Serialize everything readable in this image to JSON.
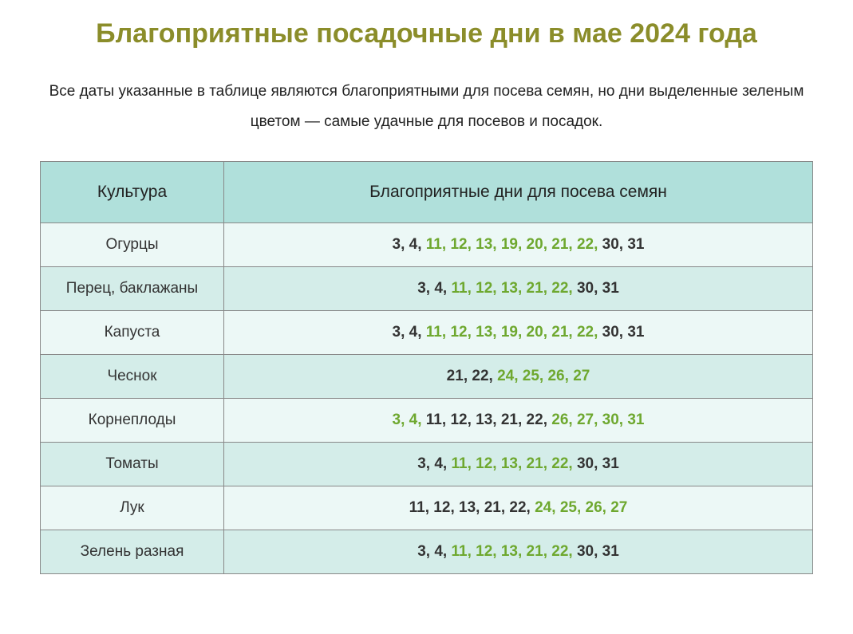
{
  "title": "Благоприятные посадочные дни в мае 2024 года",
  "subtitle": "Все даты указанные в таблице являются благоприятными для посева семян, но дни выделенные зеленым цветом — самые удачные для посевов и посадок.",
  "table": {
    "headers": {
      "col1": "Культура",
      "col2": "Благоприятные дни для посева семян"
    },
    "rows": [
      {
        "culture": "Огурцы",
        "dates": [
          {
            "v": "3",
            "h": false
          },
          {
            "v": "4",
            "h": false
          },
          {
            "v": "11",
            "h": true
          },
          {
            "v": "12",
            "h": true
          },
          {
            "v": "13",
            "h": true
          },
          {
            "v": "19",
            "h": true
          },
          {
            "v": "20",
            "h": true
          },
          {
            "v": "21",
            "h": true
          },
          {
            "v": "22",
            "h": true
          },
          {
            "v": "30",
            "h": false
          },
          {
            "v": "31",
            "h": false
          }
        ]
      },
      {
        "culture": "Перец, баклажаны",
        "dates": [
          {
            "v": "3",
            "h": false
          },
          {
            "v": "4",
            "h": false
          },
          {
            "v": "11",
            "h": true
          },
          {
            "v": "12",
            "h": true
          },
          {
            "v": "13",
            "h": true
          },
          {
            "v": "21",
            "h": true
          },
          {
            "v": "22",
            "h": true
          },
          {
            "v": "30",
            "h": false
          },
          {
            "v": "31",
            "h": false
          }
        ]
      },
      {
        "culture": "Капуста",
        "dates": [
          {
            "v": "3",
            "h": false
          },
          {
            "v": "4",
            "h": false
          },
          {
            "v": "11",
            "h": true
          },
          {
            "v": "12",
            "h": true
          },
          {
            "v": "13",
            "h": true
          },
          {
            "v": "19",
            "h": true
          },
          {
            "v": "20",
            "h": true
          },
          {
            "v": "21",
            "h": true
          },
          {
            "v": "22",
            "h": true
          },
          {
            "v": "30",
            "h": false
          },
          {
            "v": "31",
            "h": false
          }
        ]
      },
      {
        "culture": "Чеснок",
        "dates": [
          {
            "v": "21",
            "h": false
          },
          {
            "v": "22",
            "h": false
          },
          {
            "v": "24",
            "h": true
          },
          {
            "v": "25",
            "h": true
          },
          {
            "v": "26",
            "h": true
          },
          {
            "v": "27",
            "h": true
          }
        ]
      },
      {
        "culture": "Корнеплоды",
        "dates": [
          {
            "v": "3",
            "h": true
          },
          {
            "v": "4",
            "h": true
          },
          {
            "v": "11",
            "h": false
          },
          {
            "v": "12",
            "h": false
          },
          {
            "v": "13",
            "h": false
          },
          {
            "v": "21",
            "h": false
          },
          {
            "v": "22",
            "h": false
          },
          {
            "v": "26",
            "h": true
          },
          {
            "v": "27",
            "h": true
          },
          {
            "v": "30",
            "h": true
          },
          {
            "v": "31",
            "h": true
          }
        ]
      },
      {
        "culture": "Томаты",
        "dates": [
          {
            "v": "3",
            "h": false
          },
          {
            "v": "4",
            "h": false
          },
          {
            "v": "11",
            "h": true
          },
          {
            "v": "12",
            "h": true
          },
          {
            "v": "13",
            "h": true
          },
          {
            "v": "21",
            "h": true
          },
          {
            "v": "22",
            "h": true
          },
          {
            "v": "30",
            "h": false
          },
          {
            "v": "31",
            "h": false
          }
        ]
      },
      {
        "culture": "Лук",
        "dates": [
          {
            "v": "11",
            "h": false
          },
          {
            "v": "12",
            "h": false
          },
          {
            "v": "13",
            "h": false
          },
          {
            "v": "21",
            "h": false
          },
          {
            "v": "22",
            "h": false
          },
          {
            "v": "24",
            "h": true
          },
          {
            "v": "25",
            "h": true
          },
          {
            "v": "26",
            "h": true
          },
          {
            "v": "27",
            "h": true
          }
        ]
      },
      {
        "culture": "Зелень разная",
        "dates": [
          {
            "v": "3",
            "h": false
          },
          {
            "v": "4",
            "h": false
          },
          {
            "v": "11",
            "h": true
          },
          {
            "v": "12",
            "h": true
          },
          {
            "v": "13",
            "h": true
          },
          {
            "v": "21",
            "h": true
          },
          {
            "v": "22",
            "h": true
          },
          {
            "v": "30",
            "h": false
          },
          {
            "v": "31",
            "h": false
          }
        ]
      }
    ]
  },
  "colors": {
    "title": "#8b8d2a",
    "highlight": "#6ea82f",
    "normal": "#333333",
    "header_bg": "#b0e0db",
    "row_odd": "#ecf8f6",
    "row_even": "#d4ede9",
    "border": "#888888"
  }
}
